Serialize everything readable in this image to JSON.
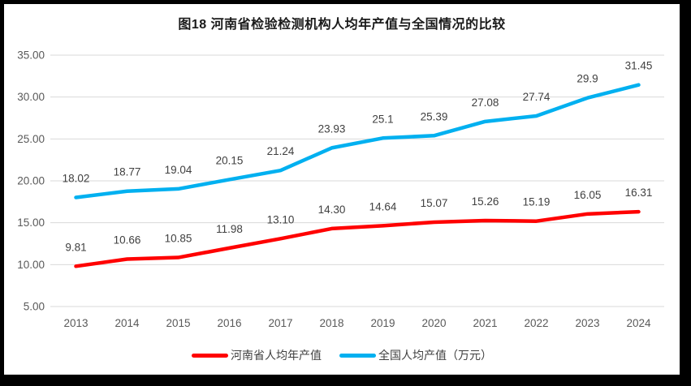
{
  "chart_data": {
    "type": "line",
    "title": "图18  河南省检验检测机构人均年产值与全国情况的比较",
    "categories": [
      "2013",
      "2014",
      "2015",
      "2016",
      "2017",
      "2018",
      "2019",
      "2020",
      "2021",
      "2022",
      "2023",
      "2024"
    ],
    "series": [
      {
        "name": "河南省人均年产值",
        "color": "#FF0000",
        "values": [
          9.81,
          10.66,
          10.85,
          11.98,
          13.1,
          14.3,
          14.64,
          15.07,
          15.26,
          15.19,
          16.05,
          16.31
        ],
        "labels": [
          "9.81",
          "10.66",
          "10.85",
          "11.98",
          "13.10",
          "14.30",
          "14.64",
          "15.07",
          "15.26",
          "15.19",
          "16.05",
          "16.31"
        ]
      },
      {
        "name": "全国人均产值（万元）",
        "color": "#00B0F0",
        "values": [
          18.02,
          18.77,
          19.04,
          20.15,
          21.24,
          23.93,
          25.1,
          25.39,
          27.08,
          27.74,
          29.9,
          31.45
        ],
        "labels": [
          "18.02",
          "18.77",
          "19.04",
          "20.15",
          "21.24",
          "23.93",
          "25.1",
          "25.39",
          "27.08",
          "27.74",
          "29.9",
          "31.45"
        ]
      }
    ],
    "y_axis": {
      "min": 5,
      "max": 35,
      "step": 5,
      "tick_labels": [
        "5.00",
        "10.00",
        "15.00",
        "20.00",
        "25.00",
        "30.00",
        "35.00"
      ]
    },
    "grid": true,
    "legend_position": "bottom",
    "colors": {
      "gridline": "#D9D9D9",
      "axis_text": "#595959",
      "data_label_text": "#404040",
      "title_text": "#1a1a1a",
      "frame_border": "#000000",
      "background": "#FFFFFF"
    }
  }
}
